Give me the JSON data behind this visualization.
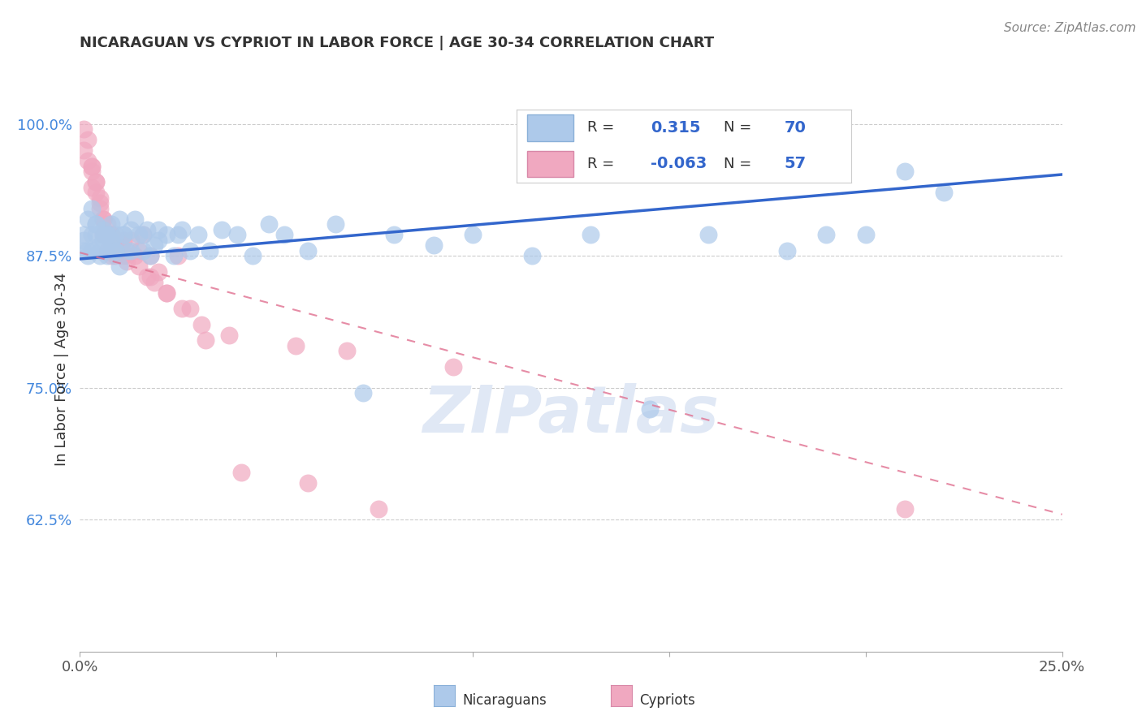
{
  "title": "NICARAGUAN VS CYPRIOT IN LABOR FORCE | AGE 30-34 CORRELATION CHART",
  "source": "Source: ZipAtlas.com",
  "ylabel_label": "In Labor Force | Age 30-34",
  "watermark": "ZIPatlas",
  "blue_color": "#adc9ea",
  "pink_color": "#f0a8c0",
  "blue_edge_color": "#8ab0d8",
  "pink_edge_color": "#d888a8",
  "blue_line_color": "#3366cc",
  "pink_line_color": "#e07090",
  "xlim": [
    0.0,
    0.25
  ],
  "ylim": [
    0.5,
    1.035
  ],
  "yticks": [
    0.625,
    0.75,
    0.875,
    1.0
  ],
  "ytick_labels": [
    "62.5%",
    "75.0%",
    "87.5%",
    "100.0%"
  ],
  "xticks": [
    0.0,
    0.05,
    0.1,
    0.15,
    0.2,
    0.25
  ],
  "xtick_labels": [
    "0.0%",
    "",
    "",
    "",
    "",
    "25.0%"
  ],
  "blue_trend_x": [
    0.0,
    0.25
  ],
  "blue_trend_y": [
    0.872,
    0.952
  ],
  "pink_trend_x": [
    0.0,
    0.25
  ],
  "pink_trend_y": [
    0.878,
    0.63
  ],
  "blue_scatter_x": [
    0.001,
    0.001,
    0.002,
    0.002,
    0.003,
    0.003,
    0.004,
    0.004,
    0.005,
    0.005,
    0.006,
    0.006,
    0.007,
    0.007,
    0.008,
    0.008,
    0.009,
    0.009,
    0.01,
    0.01,
    0.011,
    0.012,
    0.013,
    0.014,
    0.015,
    0.016,
    0.017,
    0.018,
    0.019,
    0.02,
    0.022,
    0.024,
    0.026,
    0.028,
    0.03,
    0.033,
    0.036,
    0.04,
    0.044,
    0.048,
    0.052,
    0.058,
    0.065,
    0.072,
    0.08,
    0.09,
    0.1,
    0.115,
    0.13,
    0.145,
    0.16,
    0.18,
    0.2,
    0.22,
    0.001,
    0.002,
    0.003,
    0.004,
    0.005,
    0.006,
    0.007,
    0.008,
    0.009,
    0.011,
    0.013,
    0.016,
    0.02,
    0.025,
    0.19,
    0.21
  ],
  "blue_scatter_y": [
    0.88,
    0.895,
    0.91,
    0.875,
    0.92,
    0.88,
    0.905,
    0.895,
    0.875,
    0.885,
    0.9,
    0.89,
    0.895,
    0.875,
    0.905,
    0.885,
    0.88,
    0.895,
    0.91,
    0.865,
    0.895,
    0.88,
    0.9,
    0.91,
    0.895,
    0.88,
    0.9,
    0.875,
    0.885,
    0.89,
    0.895,
    0.875,
    0.9,
    0.88,
    0.895,
    0.88,
    0.9,
    0.895,
    0.875,
    0.905,
    0.895,
    0.88,
    0.905,
    0.745,
    0.895,
    0.885,
    0.895,
    0.875,
    0.895,
    0.73,
    0.895,
    0.88,
    0.895,
    0.935,
    0.89,
    0.88,
    0.895,
    0.905,
    0.88,
    0.895,
    0.895,
    0.89,
    0.88,
    0.895,
    0.88,
    0.895,
    0.9,
    0.895,
    0.895,
    0.955
  ],
  "pink_scatter_x": [
    0.001,
    0.001,
    0.002,
    0.002,
    0.003,
    0.003,
    0.003,
    0.004,
    0.004,
    0.005,
    0.005,
    0.006,
    0.006,
    0.007,
    0.007,
    0.008,
    0.008,
    0.009,
    0.009,
    0.01,
    0.011,
    0.011,
    0.012,
    0.013,
    0.014,
    0.015,
    0.016,
    0.017,
    0.018,
    0.019,
    0.02,
    0.022,
    0.025,
    0.028,
    0.032,
    0.038,
    0.055,
    0.068,
    0.003,
    0.004,
    0.005,
    0.006,
    0.007,
    0.008,
    0.009,
    0.01,
    0.012,
    0.015,
    0.018,
    0.022,
    0.026,
    0.031,
    0.041,
    0.058,
    0.076,
    0.095,
    0.21
  ],
  "pink_scatter_y": [
    0.995,
    0.975,
    0.985,
    0.965,
    0.96,
    0.94,
    0.955,
    0.935,
    0.945,
    0.93,
    0.92,
    0.91,
    0.895,
    0.895,
    0.88,
    0.895,
    0.875,
    0.885,
    0.875,
    0.88,
    0.89,
    0.875,
    0.875,
    0.89,
    0.875,
    0.88,
    0.895,
    0.855,
    0.875,
    0.85,
    0.86,
    0.84,
    0.875,
    0.825,
    0.795,
    0.8,
    0.79,
    0.785,
    0.96,
    0.945,
    0.925,
    0.91,
    0.905,
    0.895,
    0.88,
    0.88,
    0.87,
    0.865,
    0.855,
    0.84,
    0.825,
    0.81,
    0.67,
    0.66,
    0.635,
    0.77,
    0.635
  ],
  "legend_blue_R": "0.315",
  "legend_blue_N": "70",
  "legend_pink_R": "-0.063",
  "legend_pink_N": "57",
  "bottom_label_blue": "Nicaraguans",
  "bottom_label_pink": "Cypriots"
}
